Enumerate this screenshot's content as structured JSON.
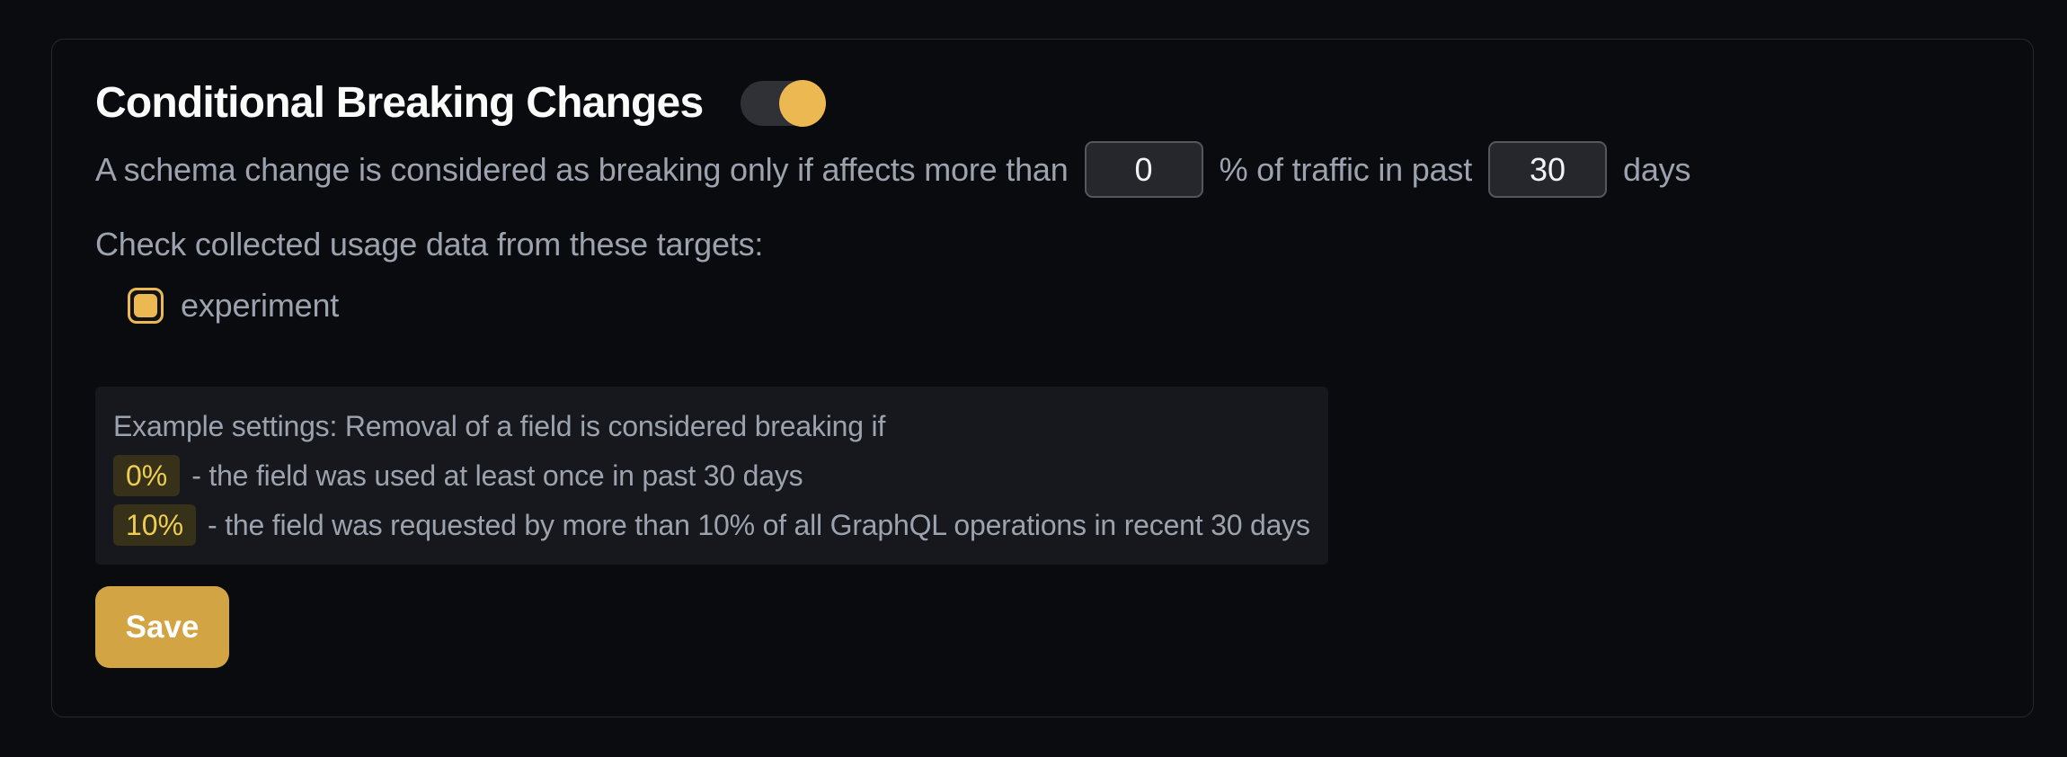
{
  "header": {
    "title": "Conditional Breaking Changes",
    "toggle": {
      "state": "on"
    }
  },
  "threshold_row": {
    "text_before": "A schema change is considered as breaking only if affects more than",
    "percent_value": "0",
    "text_middle": "% of traffic in past",
    "days_value": "30",
    "text_after": "days"
  },
  "targets": {
    "label": "Check collected usage data from these targets:",
    "items": [
      {
        "name": "experiment",
        "checked": true
      }
    ]
  },
  "example": {
    "intro": "Example settings: Removal of a field is considered breaking if",
    "rows": [
      {
        "badge": "0%",
        "text": "- the field was used at least once in past 30 days"
      },
      {
        "badge": "10%",
        "text": "- the field was requested by more than 10% of all GraphQL operations in recent 30 days"
      }
    ]
  },
  "actions": {
    "save_label": "Save"
  },
  "colors": {
    "accent_yellow": "#ecb851",
    "save_button_bg": "#d2a443",
    "badge_text": "#edce52",
    "badge_bg": "#363118",
    "card_bg": "#0a0b0e",
    "card_border": "#27292e",
    "page_bg": "#0b0c10",
    "body_text": "#9ca3af",
    "example_box_bg": "#17181d",
    "input_bg": "#26272c",
    "input_border": "#55575e"
  }
}
